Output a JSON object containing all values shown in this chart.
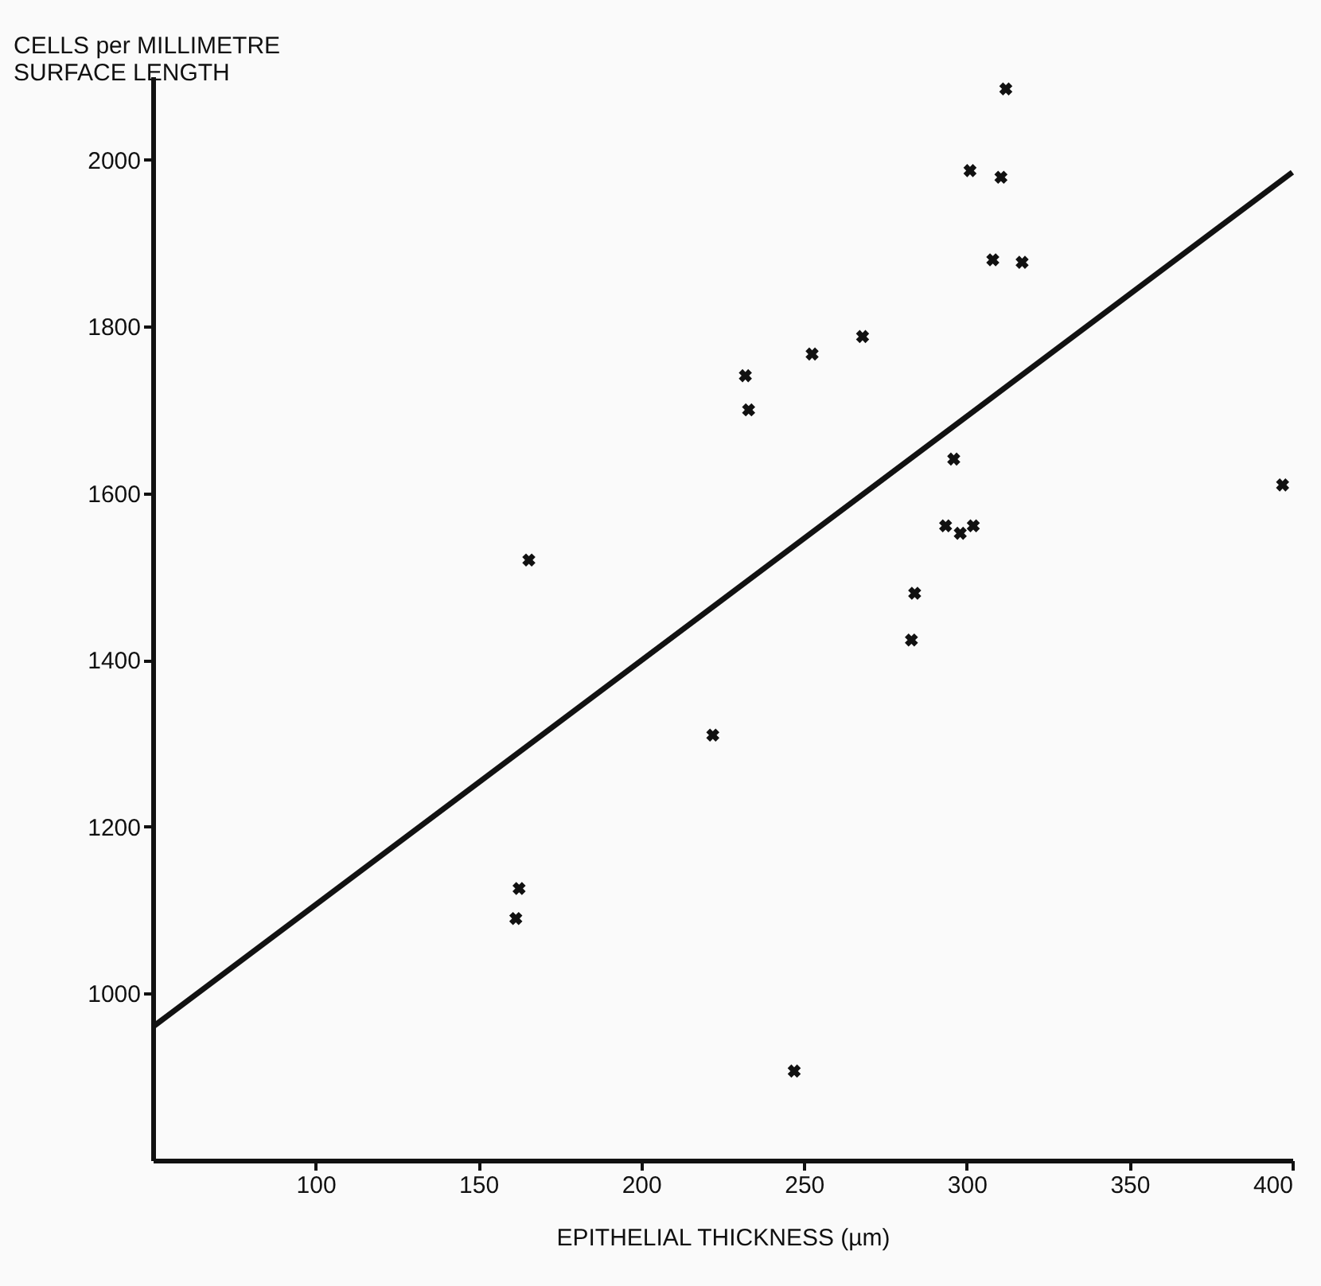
{
  "chart_data": {
    "type": "scatter",
    "xlabel": "EPITHELIAL THICKNESS (µm)",
    "ylabel": "CELLS per MILLIMETRE\nSURFACE LENGTH",
    "xlim": [
      50,
      400
    ],
    "ylim": [
      800,
      2100
    ],
    "xticks": [
      100,
      150,
      200,
      250,
      300,
      350,
      400
    ],
    "yticks": [
      1000,
      1200,
      1400,
      1600,
      1800,
      2000
    ],
    "series": [
      {
        "color": "#111111",
        "marker": "cross",
        "x": [
          312,
          301,
          310.5,
          308,
          317,
          232,
          252.5,
          268,
          233,
          165.5,
          296,
          293.5,
          298,
          302,
          284,
          283,
          222,
          397,
          162.5,
          161.5,
          247
        ],
        "values": [
          2085,
          1987,
          1979,
          1880,
          1877,
          1741,
          1767,
          1788,
          1700,
          1520,
          1641,
          1561,
          1552,
          1561,
          1480,
          1424,
          1310,
          1610,
          1126,
          1090,
          907
        ]
      },
      {
        "type": "line",
        "color": "#111111",
        "marker": "none",
        "line_style": "solid",
        "x": [
          50,
          400
        ],
        "values": [
          960,
          1985
        ]
      }
    ]
  }
}
